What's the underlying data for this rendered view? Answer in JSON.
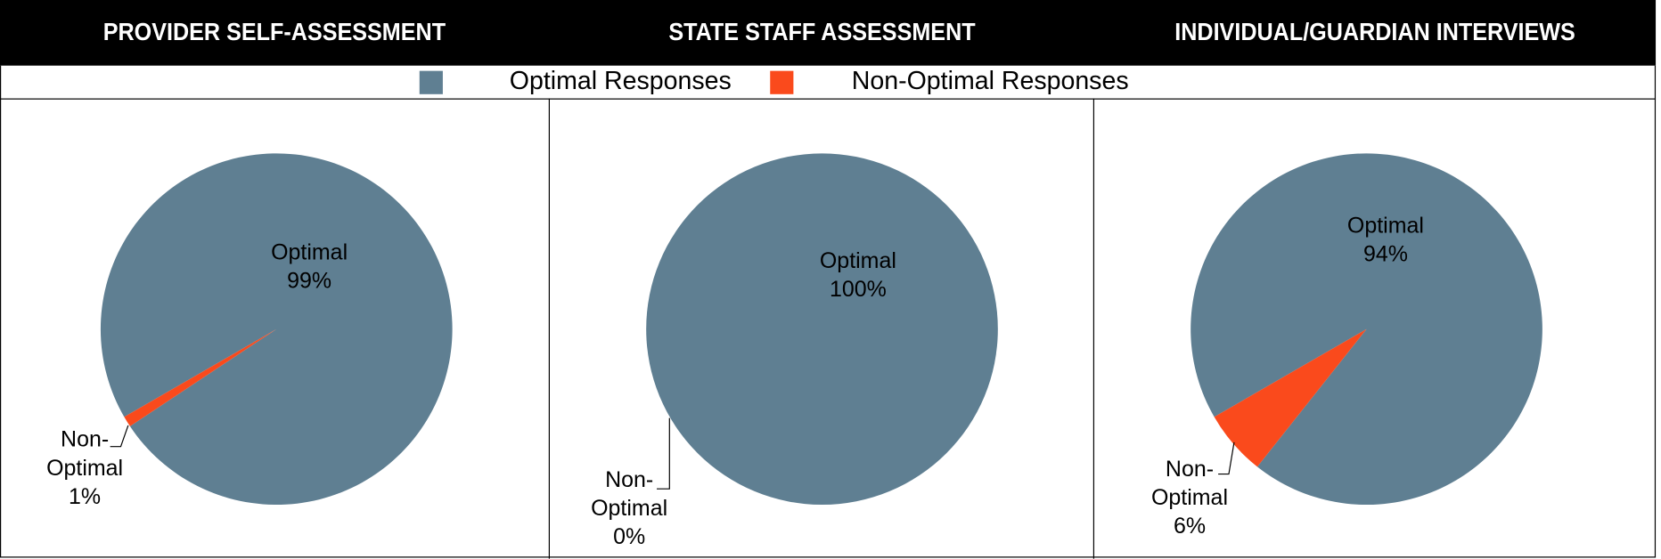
{
  "legend": [
    {
      "name": "Optimal Responses",
      "color": "#5f7f92"
    },
    {
      "name": "Non-Optimal Responses",
      "color": "#fa4a1c"
    }
  ],
  "chart_data": [
    {
      "type": "pie",
      "title": "PROVIDER SELF-ASSESSMENT",
      "categories": [
        "Optimal",
        "Non-Optimal"
      ],
      "values": [
        99,
        1
      ],
      "value_labels": [
        "99%",
        "1%"
      ],
      "colors": [
        "#5f7f92",
        "#fa4a1c"
      ]
    },
    {
      "type": "pie",
      "title": "STATE STAFF ASSESSMENT",
      "categories": [
        "Optimal",
        "Non-Optimal"
      ],
      "values": [
        100,
        0
      ],
      "value_labels": [
        "100%",
        "0%"
      ],
      "colors": [
        "#5f7f92",
        "#fa4a1c"
      ]
    },
    {
      "type": "pie",
      "title": "INDIVIDUAL/GUARDIAN INTERVIEWS",
      "categories": [
        "Optimal",
        "Non-Optimal"
      ],
      "values": [
        94,
        6
      ],
      "value_labels": [
        "94%",
        "6%"
      ],
      "colors": [
        "#5f7f92",
        "#fa4a1c"
      ]
    }
  ]
}
